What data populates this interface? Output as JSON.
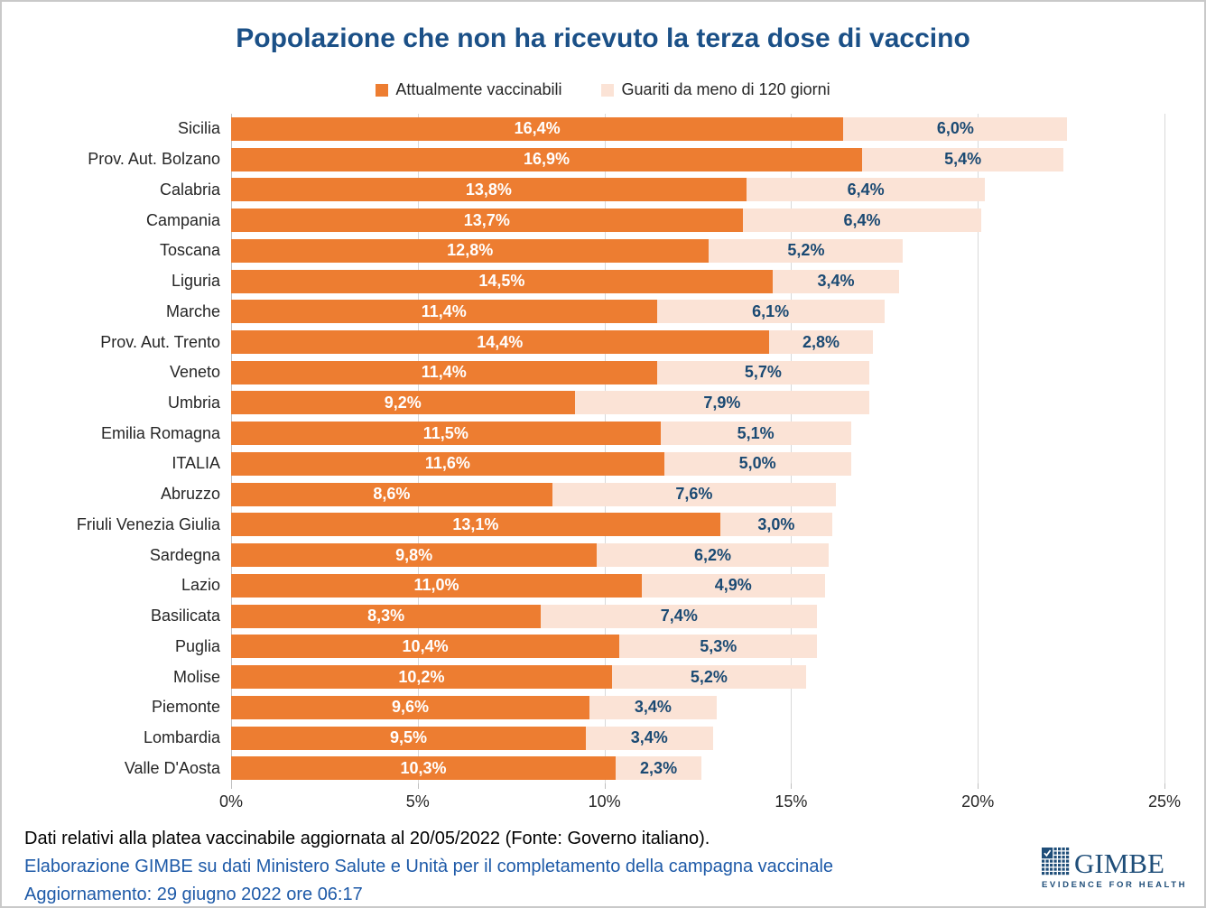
{
  "title": "Popolazione che non ha ricevuto la terza dose di vaccino",
  "legend": {
    "items": [
      {
        "label": "Attualmente vaccinabili",
        "color": "#ED7D31"
      },
      {
        "label": "Guariti da meno di 120 giorni",
        "color": "#FBE3D6"
      }
    ]
  },
  "chart_data": {
    "type": "bar",
    "orientation": "horizontal",
    "stacked": true,
    "title": "Popolazione che non ha ricevuto la terza dose di vaccino",
    "categories": [
      "Sicilia",
      "Prov. Aut. Bolzano",
      "Calabria",
      "Campania",
      "Toscana",
      "Liguria",
      "Marche",
      "Prov. Aut. Trento",
      "Veneto",
      "Umbria",
      "Emilia Romagna",
      "ITALIA",
      "Abruzzo",
      "Friuli Venezia Giulia",
      "Sardegna",
      "Lazio",
      "Basilicata",
      "Puglia",
      "Molise",
      "Piemonte",
      "Lombardia",
      "Valle D'Aosta"
    ],
    "series": [
      {
        "name": "Attualmente vaccinabili",
        "color": "#ED7D31",
        "label_color": "#FFFFFF",
        "values": [
          16.4,
          16.9,
          13.8,
          13.7,
          12.8,
          14.5,
          11.4,
          14.4,
          11.4,
          9.2,
          11.5,
          11.6,
          8.6,
          13.1,
          9.8,
          11.0,
          8.3,
          10.4,
          10.2,
          9.6,
          9.5,
          10.3
        ],
        "labels": [
          "16,4%",
          "16,9%",
          "13,8%",
          "13,7%",
          "12,8%",
          "14,5%",
          "11,4%",
          "14,4%",
          "11,4%",
          "9,2%",
          "11,5%",
          "11,6%",
          "8,6%",
          "13,1%",
          "9,8%",
          "11,0%",
          "8,3%",
          "10,4%",
          "10,2%",
          "9,6%",
          "9,5%",
          "10,3%"
        ]
      },
      {
        "name": "Guariti da meno di 120 giorni",
        "color": "#FBE3D6",
        "label_color": "#1B4A73",
        "values": [
          6.0,
          5.4,
          6.4,
          6.4,
          5.2,
          3.4,
          6.1,
          2.8,
          5.7,
          7.9,
          5.1,
          5.0,
          7.6,
          3.0,
          6.2,
          4.9,
          7.4,
          5.3,
          5.2,
          3.4,
          3.4,
          2.3
        ],
        "labels": [
          "6,0%",
          "5,4%",
          "6,4%",
          "6,4%",
          "5,2%",
          "3,4%",
          "6,1%",
          "2,8%",
          "5,7%",
          "7,9%",
          "5,1%",
          "5,0%",
          "7,6%",
          "3,0%",
          "6,2%",
          "4,9%",
          "7,4%",
          "5,3%",
          "5,2%",
          "3,4%",
          "3,4%",
          "2,3%"
        ],
        "totals_labels_note": "second segment label shown inside light bar"
      }
    ],
    "xlim": [
      0,
      25
    ],
    "x_tick_values": [
      0,
      5,
      10,
      15,
      20,
      25
    ],
    "x_ticks": [
      "0%",
      "5%",
      "10%",
      "15%",
      "20%",
      "25%"
    ],
    "grid": "vertical",
    "legend_position": "top"
  },
  "footer": {
    "line1": "Dati relativi alla platea vaccinabile aggiornata al 20/05/2022 (Fonte: Governo italiano).",
    "line2": "Elaborazione GIMBE su dati Ministero Salute e Unità per il completamento della campagna vaccinale",
    "line3": "Aggiornamento: 29 giugno 2022 ore 06:17"
  },
  "logo": {
    "name": "GIMBE",
    "tagline": "EVIDENCE FOR HEALTH"
  },
  "colors": {
    "bar_primary": "#ED7D31",
    "bar_secondary": "#FBE3D6",
    "title_blue": "#1B5087",
    "footer_blue": "#1E5AA8",
    "label_navy": "#1B4A73",
    "gridline": "#D9D9D9",
    "axis_line": "#BFBFBF",
    "logo_navy": "#1F4E79"
  }
}
